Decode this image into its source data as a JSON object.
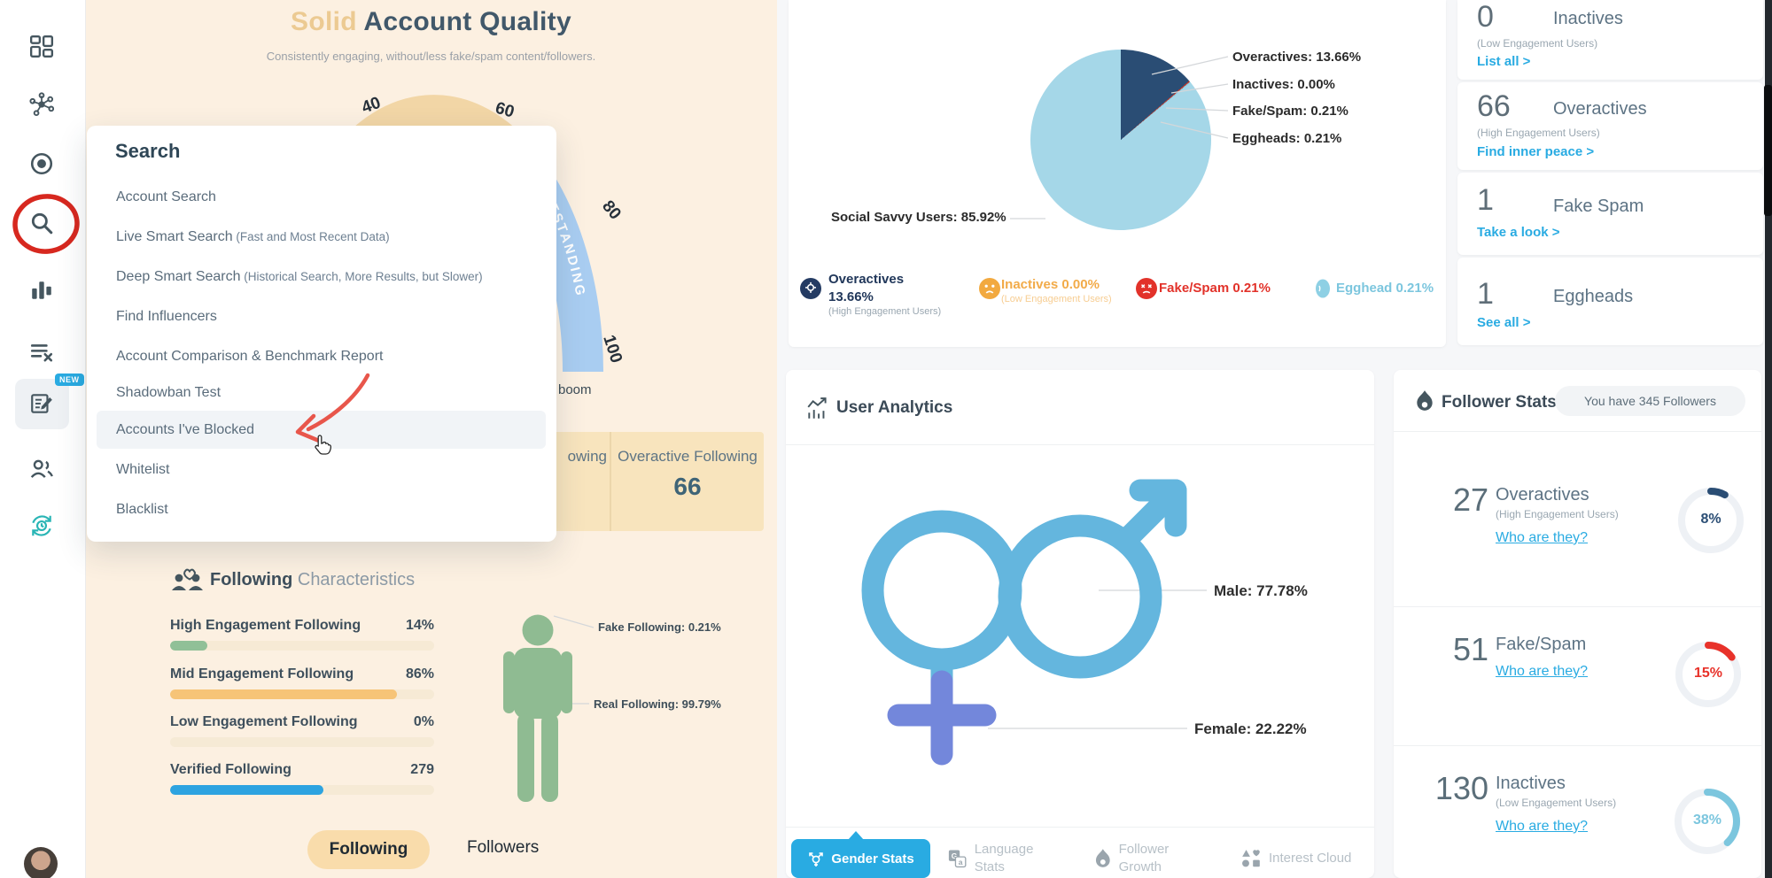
{
  "sidebar": {
    "new_badge": "NEW"
  },
  "account_quality": {
    "title_accent": "Solid",
    "title_main": " Account Quality",
    "subtitle": "Consistently engaging, without/less fake/spam content/followers.",
    "gauge": {
      "ticks": [
        "40",
        "60",
        "80",
        "100"
      ],
      "band": "OUTSTANDING",
      "score_text": "boom"
    },
    "summary": {
      "left_fragment": "owing",
      "right_label": "Overactive Following",
      "right_value": "66"
    }
  },
  "search_menu": {
    "title": "Search",
    "items": [
      {
        "label": "Account Search",
        "note": ""
      },
      {
        "label": "Live Smart Search",
        "note": " (Fast and Most Recent Data)"
      },
      {
        "label": "Deep Smart Search",
        "note": " (Historical Search, More Results, but Slower)"
      },
      {
        "label": "Find Influencers",
        "note": ""
      },
      {
        "label": "Account Comparison & Benchmark Report",
        "note": ""
      },
      {
        "label": "Shadowban Test",
        "note": ""
      },
      {
        "label": "Accounts I've Blocked",
        "note": ""
      },
      {
        "label": "Whitelist",
        "note": ""
      },
      {
        "label": "Blacklist",
        "note": ""
      }
    ]
  },
  "audience": {
    "chart": {
      "type": "pie",
      "slices": [
        {
          "name": "Overactives",
          "value": 13.66,
          "color": "#2a4d74"
        },
        {
          "name": "Inactives",
          "value": 0.0,
          "color": "#f0a93e"
        },
        {
          "name": "Fake/Spam",
          "value": 0.21,
          "color": "#c0392b"
        },
        {
          "name": "Eggheads",
          "value": 0.21,
          "color": "#8fd0e5"
        },
        {
          "name": "Social Savvy Users",
          "value": 85.92,
          "color": "#a5d7e8"
        }
      ]
    },
    "callouts": [
      "Overactives: 13.66%",
      "Inactives: 0.00%",
      "Fake/Spam: 0.21%",
      "Eggheads: 0.21%"
    ],
    "callout_left": "Social Savvy Users: 85.92%",
    "legend": [
      {
        "line1": "Overactives",
        "line2": "13.66%",
        "sub": "(High Engagement Users)",
        "color": "#21375a"
      },
      {
        "line1": "Inactives 0.00%",
        "line2": "",
        "sub": "(Low Engagement Users)",
        "color": "#f2ab49"
      },
      {
        "line1": "Fake/Spam 0.21%",
        "line2": "",
        "sub": "",
        "color": "#e2322a"
      },
      {
        "line1": "Egghead 0.21%",
        "line2": "",
        "sub": "",
        "color": "#7cc6de"
      }
    ]
  },
  "quick_stats": [
    {
      "value": "0",
      "label": "Inactives",
      "sub": "(Low Engagement Users)",
      "link": "List all >"
    },
    {
      "value": "66",
      "label": "Overactives",
      "sub": "(High Engagement Users)",
      "link": "Find inner peace >"
    },
    {
      "value": "1",
      "label": "Fake Spam",
      "sub": "",
      "link": "Take a look >"
    },
    {
      "value": "1",
      "label": "Eggheads",
      "sub": "",
      "link": "See all >"
    }
  ],
  "user_analytics": {
    "title": "User Analytics",
    "male": "Male: 77.78%",
    "female": "Female: 22.22%",
    "tabs": [
      "Gender Stats",
      "Language Stats",
      "Follower Growth",
      "Interest Cloud"
    ]
  },
  "follower_stats": {
    "title": "Follower Stats",
    "badge": "You have 345 Followers",
    "rows": [
      {
        "value": "27",
        "label": "Overactives",
        "sub": "(High Engagement Users)",
        "link": "Who are they?",
        "pct_label": "8%",
        "pct": 8,
        "color": "#2a4d74"
      },
      {
        "value": "51",
        "label": "Fake/Spam",
        "sub": "",
        "link": "Who are they?",
        "pct_label": "15%",
        "pct": 15,
        "color": "#e8322a"
      },
      {
        "value": "130",
        "label": "Inactives",
        "sub": "(Low Engagement Users)",
        "link": "Who are they?",
        "pct_label": "38%",
        "pct": 38,
        "color": "#7cc6de"
      }
    ]
  },
  "following_characteristics": {
    "title_bold": "Following",
    "title_light": " Characteristics",
    "bars": [
      {
        "label": "High Engagement Following",
        "value": "14%",
        "pct": 14,
        "color": "#90c097"
      },
      {
        "label": "Mid Engagement Following",
        "value": "86%",
        "pct": 86,
        "color": "#f6c477"
      },
      {
        "label": "Low Engagement Following",
        "value": "0%",
        "pct": 0,
        "color": "#90c097"
      },
      {
        "label": "Verified Following",
        "value": "279",
        "pct": 58,
        "color": "#2da3e0"
      }
    ],
    "fake": "Fake Following: 0.21%",
    "real": "Real Following: 99.79%",
    "toggle_active": "Following",
    "toggle_inactive": "Followers"
  }
}
